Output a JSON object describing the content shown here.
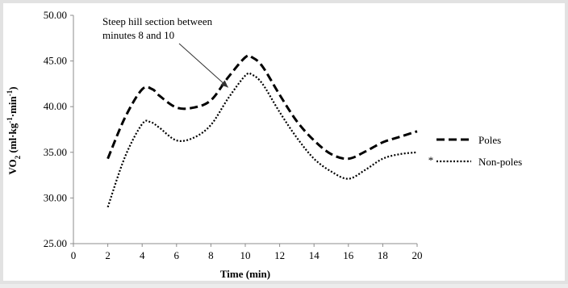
{
  "chart_data": {
    "type": "line",
    "title": "",
    "xlabel": "Time (min)",
    "ylabel": "VO2 (ml·kg⁻¹·min⁻¹)",
    "ylabel_parts": {
      "main": "VO",
      "sub": "2",
      "rest": " (ml·kg",
      "sup1": "-1",
      "mid": "·min",
      "sup2": "-1",
      "end": ")"
    },
    "xlim": [
      0,
      20
    ],
    "ylim": [
      25,
      50
    ],
    "x_ticks": [
      "0",
      "2",
      "4",
      "6",
      "8",
      "10",
      "12",
      "14",
      "16",
      "18",
      "20"
    ],
    "y_ticks": [
      "25.00",
      "30.00",
      "35.00",
      "40.00",
      "45.00",
      "50.00"
    ],
    "grid": false,
    "legend_position": "right",
    "series": [
      {
        "name": "Poles",
        "style": "dashed",
        "x": [
          2,
          3,
          4,
          4.6,
          5,
          6,
          7,
          8,
          9,
          10,
          10.4,
          11,
          12,
          13,
          14,
          15,
          16,
          17,
          18,
          19,
          20
        ],
        "y": [
          34.3,
          38.8,
          41.9,
          41.9,
          41.2,
          39.9,
          39.9,
          40.7,
          43.2,
          45.4,
          45.4,
          44.4,
          41.3,
          38.4,
          36.3,
          34.8,
          34.3,
          35.1,
          36.1,
          36.7,
          37.3
        ]
      },
      {
        "name": "Non-poles",
        "style": "dotted",
        "x": [
          2,
          3,
          4,
          4.5,
          5,
          6,
          7,
          8,
          9,
          10,
          10.4,
          11,
          12,
          13,
          14,
          15,
          16,
          17,
          18,
          19,
          20
        ],
        "y": [
          29.0,
          34.5,
          38.1,
          38.3,
          37.7,
          36.3,
          36.6,
          38.0,
          40.9,
          43.4,
          43.5,
          42.5,
          39.4,
          36.6,
          34.3,
          32.9,
          32.1,
          33.1,
          34.3,
          34.8,
          35.0
        ]
      }
    ],
    "annotations": [
      {
        "line1": "Steep hill section between",
        "line2": "minutes 8 and 10",
        "target_x": 9,
        "target_y": 42.1
      },
      {
        "text": "*",
        "at_x": 20,
        "at_y": 34.1
      }
    ]
  }
}
